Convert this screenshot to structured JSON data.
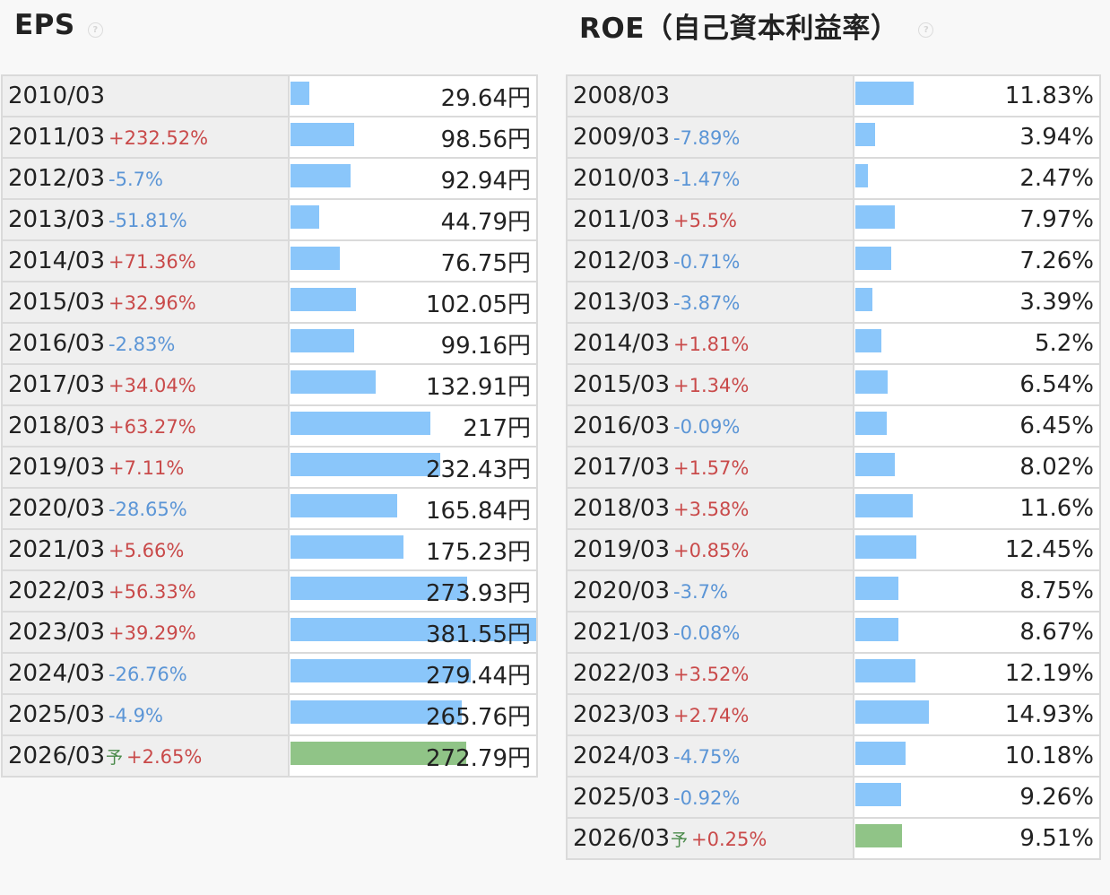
{
  "eps": {
    "title": "EPS",
    "help": "?",
    "unit": "円",
    "forecast_mark": "予",
    "rows": [
      {
        "year": "2010/03",
        "change": "",
        "value": "29.64円",
        "num": 29.64,
        "forecast": false
      },
      {
        "year": "2011/03",
        "change": "+232.52%",
        "value": "98.56円",
        "num": 98.56,
        "forecast": false
      },
      {
        "year": "2012/03",
        "change": "-5.7%",
        "value": "92.94円",
        "num": 92.94,
        "forecast": false
      },
      {
        "year": "2013/03",
        "change": "-51.81%",
        "value": "44.79円",
        "num": 44.79,
        "forecast": false
      },
      {
        "year": "2014/03",
        "change": "+71.36%",
        "value": "76.75円",
        "num": 76.75,
        "forecast": false
      },
      {
        "year": "2015/03",
        "change": "+32.96%",
        "value": "102.05円",
        "num": 102.05,
        "forecast": false
      },
      {
        "year": "2016/03",
        "change": "-2.83%",
        "value": "99.16円",
        "num": 99.16,
        "forecast": false
      },
      {
        "year": "2017/03",
        "change": "+34.04%",
        "value": "132.91円",
        "num": 132.91,
        "forecast": false
      },
      {
        "year": "2018/03",
        "change": "+63.27%",
        "value": "217円",
        "num": 217,
        "forecast": false
      },
      {
        "year": "2019/03",
        "change": "+7.11%",
        "value": "232.43円",
        "num": 232.43,
        "forecast": false
      },
      {
        "year": "2020/03",
        "change": "-28.65%",
        "value": "165.84円",
        "num": 165.84,
        "forecast": false
      },
      {
        "year": "2021/03",
        "change": "+5.66%",
        "value": "175.23円",
        "num": 175.23,
        "forecast": false
      },
      {
        "year": "2022/03",
        "change": "+56.33%",
        "value": "273.93円",
        "num": 273.93,
        "forecast": false
      },
      {
        "year": "2023/03",
        "change": "+39.29%",
        "value": "381.55円",
        "num": 381.55,
        "forecast": false
      },
      {
        "year": "2024/03",
        "change": "-26.76%",
        "value": "279.44円",
        "num": 279.44,
        "forecast": false
      },
      {
        "year": "2025/03",
        "change": "-4.9%",
        "value": "265.76円",
        "num": 265.76,
        "forecast": false
      },
      {
        "year": "2026/03",
        "change": "+2.65%",
        "value": "272.79円",
        "num": 272.79,
        "forecast": true
      }
    ]
  },
  "roe": {
    "title": "ROE（自己資本利益率）",
    "help": "?",
    "forecast_mark": "予",
    "rows": [
      {
        "year": "2008/03",
        "change": "",
        "value": "11.83%",
        "num": 11.83,
        "forecast": false
      },
      {
        "year": "2009/03",
        "change": "-7.89%",
        "value": "3.94%",
        "num": 3.94,
        "forecast": false
      },
      {
        "year": "2010/03",
        "change": "-1.47%",
        "value": "2.47%",
        "num": 2.47,
        "forecast": false
      },
      {
        "year": "2011/03",
        "change": "+5.5%",
        "value": "7.97%",
        "num": 7.97,
        "forecast": false
      },
      {
        "year": "2012/03",
        "change": "-0.71%",
        "value": "7.26%",
        "num": 7.26,
        "forecast": false
      },
      {
        "year": "2013/03",
        "change": "-3.87%",
        "value": "3.39%",
        "num": 3.39,
        "forecast": false
      },
      {
        "year": "2014/03",
        "change": "+1.81%",
        "value": "5.2%",
        "num": 5.2,
        "forecast": false
      },
      {
        "year": "2015/03",
        "change": "+1.34%",
        "value": "6.54%",
        "num": 6.54,
        "forecast": false
      },
      {
        "year": "2016/03",
        "change": "-0.09%",
        "value": "6.45%",
        "num": 6.45,
        "forecast": false
      },
      {
        "year": "2017/03",
        "change": "+1.57%",
        "value": "8.02%",
        "num": 8.02,
        "forecast": false
      },
      {
        "year": "2018/03",
        "change": "+3.58%",
        "value": "11.6%",
        "num": 11.6,
        "forecast": false
      },
      {
        "year": "2019/03",
        "change": "+0.85%",
        "value": "12.45%",
        "num": 12.45,
        "forecast": false
      },
      {
        "year": "2020/03",
        "change": "-3.7%",
        "value": "8.75%",
        "num": 8.75,
        "forecast": false
      },
      {
        "year": "2021/03",
        "change": "-0.08%",
        "value": "8.67%",
        "num": 8.67,
        "forecast": false
      },
      {
        "year": "2022/03",
        "change": "+3.52%",
        "value": "12.19%",
        "num": 12.19,
        "forecast": false
      },
      {
        "year": "2023/03",
        "change": "+2.74%",
        "value": "14.93%",
        "num": 14.93,
        "forecast": false
      },
      {
        "year": "2024/03",
        "change": "-4.75%",
        "value": "10.18%",
        "num": 10.18,
        "forecast": false
      },
      {
        "year": "2025/03",
        "change": "-0.92%",
        "value": "9.26%",
        "num": 9.26,
        "forecast": false
      },
      {
        "year": "2026/03",
        "change": "+0.25%",
        "value": "9.51%",
        "num": 9.51,
        "forecast": true
      }
    ]
  },
  "colors": {
    "bar_actual": "#8ac6fa",
    "bar_forecast": "#90c487",
    "change_up": "#c94a4a",
    "change_down": "#5b95d6"
  },
  "chart_data": [
    {
      "type": "bar",
      "title": "EPS",
      "unit": "円",
      "categories": [
        "2010/03",
        "2011/03",
        "2012/03",
        "2013/03",
        "2014/03",
        "2015/03",
        "2016/03",
        "2017/03",
        "2018/03",
        "2019/03",
        "2020/03",
        "2021/03",
        "2022/03",
        "2023/03",
        "2024/03",
        "2025/03",
        "2026/03"
      ],
      "values": [
        29.64,
        98.56,
        92.94,
        44.79,
        76.75,
        102.05,
        99.16,
        132.91,
        217,
        232.43,
        165.84,
        175.23,
        273.93,
        381.55,
        279.44,
        265.76,
        272.79
      ],
      "changes": [
        "",
        "+232.52%",
        "-5.7%",
        "-51.81%",
        "+71.36%",
        "+32.96%",
        "-2.83%",
        "+34.04%",
        "+63.27%",
        "+7.11%",
        "-28.65%",
        "+5.66%",
        "+56.33%",
        "+39.29%",
        "-26.76%",
        "-4.9%",
        "+2.65%"
      ],
      "forecast": [
        "2026/03"
      ],
      "orientation": "horizontal"
    },
    {
      "type": "bar",
      "title": "ROE（自己資本利益率）",
      "unit": "%",
      "categories": [
        "2008/03",
        "2009/03",
        "2010/03",
        "2011/03",
        "2012/03",
        "2013/03",
        "2014/03",
        "2015/03",
        "2016/03",
        "2017/03",
        "2018/03",
        "2019/03",
        "2020/03",
        "2021/03",
        "2022/03",
        "2023/03",
        "2024/03",
        "2025/03",
        "2026/03"
      ],
      "values": [
        11.83,
        3.94,
        2.47,
        7.97,
        7.26,
        3.39,
        5.2,
        6.54,
        6.45,
        8.02,
        11.6,
        12.45,
        8.75,
        8.67,
        12.19,
        14.93,
        10.18,
        9.26,
        9.51
      ],
      "changes": [
        "",
        "-7.89%",
        "-1.47%",
        "+5.5%",
        "-0.71%",
        "-3.87%",
        "+1.81%",
        "+1.34%",
        "-0.09%",
        "+1.57%",
        "+3.58%",
        "+0.85%",
        "-3.7%",
        "-0.08%",
        "+3.52%",
        "+2.74%",
        "-4.75%",
        "-0.92%",
        "+0.25%"
      ],
      "forecast": [
        "2026/03"
      ],
      "orientation": "horizontal"
    }
  ]
}
